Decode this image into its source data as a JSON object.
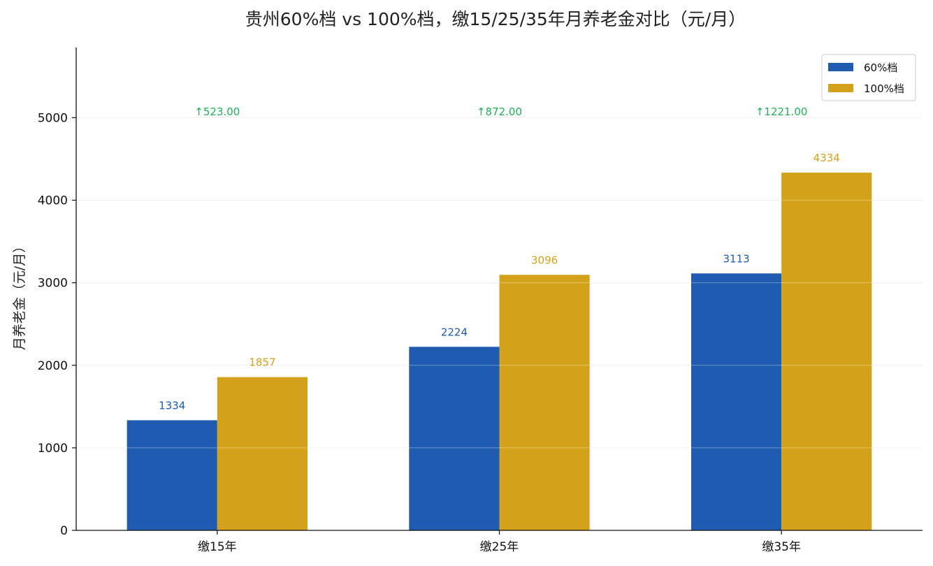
{
  "chart_data": {
    "type": "bar",
    "title": "贵州60%档 vs 100%档，缴15/25/35年月养老金对比（元/月）",
    "xlabel": "",
    "ylabel": "月养老金（元/月）",
    "categories": [
      "缴15年",
      "缴25年",
      "缴35年"
    ],
    "series": [
      {
        "name": "60%档",
        "color": "#1f5bb0",
        "values": [
          1334,
          2224,
          3113
        ],
        "labels": [
          "1334",
          "2224",
          "3113"
        ]
      },
      {
        "name": "100%档",
        "color": "#d4a11a",
        "values": [
          1857,
          3096,
          4334
        ],
        "labels": [
          "1857",
          "3096",
          "4334"
        ]
      }
    ],
    "differences": [
      "↑523.00",
      "↑872.00",
      "↑1221.00"
    ],
    "difference_color": "#22b05a",
    "ylim": [
      0,
      5850
    ],
    "yticks": [
      "0",
      "1000",
      "2000",
      "3000",
      "4000",
      "5000"
    ],
    "ytick_values": [
      0,
      1000,
      2000,
      3000,
      4000,
      5000
    ],
    "grid": true,
    "legend_position": "top-right"
  }
}
